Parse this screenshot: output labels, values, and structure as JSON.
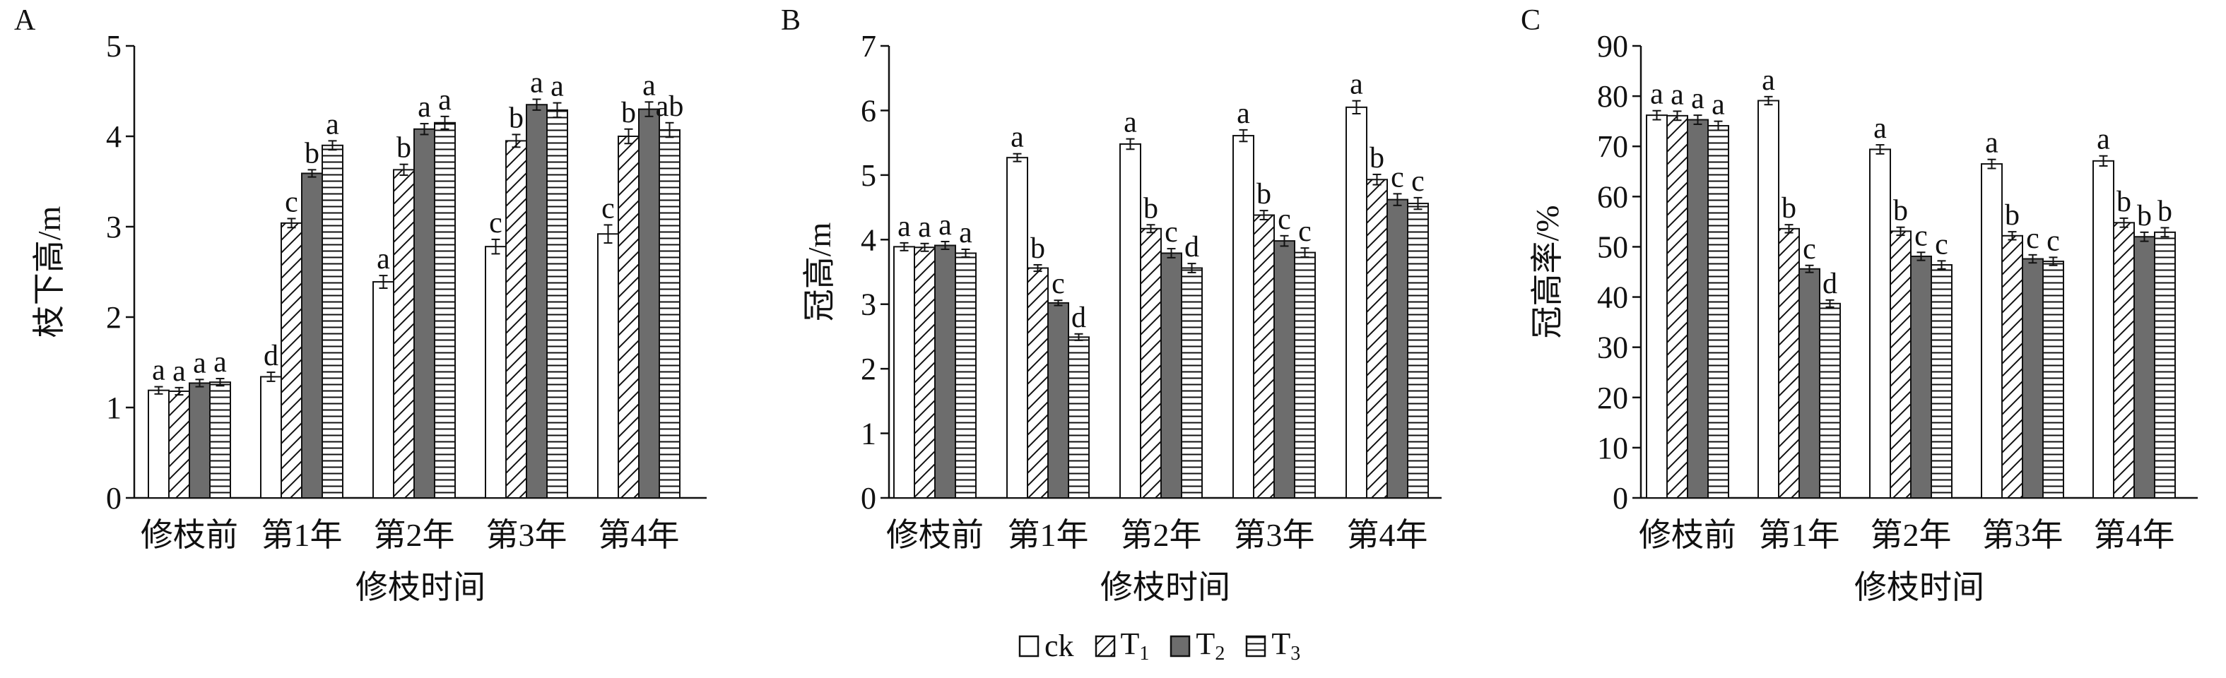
{
  "panels": [
    {
      "letter": "A",
      "unit_sym": "m"
    },
    {
      "letter": "B",
      "unit_sym": "m"
    },
    {
      "letter": "C",
      "unit_sym": "%"
    }
  ],
  "legend": [
    {
      "name": "ck",
      "sub": "",
      "pattern": "empty"
    },
    {
      "name": "T",
      "sub": "1",
      "pattern": "diag"
    },
    {
      "name": "T",
      "sub": "2",
      "pattern": "solid"
    },
    {
      "name": "T",
      "sub": "3",
      "pattern": "hlines"
    }
  ],
  "colors": {
    "axis": "#111111",
    "solid_fill": "#6d6d6d",
    "background": "#ffffff"
  },
  "chart_data": [
    {
      "type": "bar",
      "panel": "A",
      "ylabel": "枝下高/m",
      "xlabel": "修枝时间",
      "categories": [
        "修枝前",
        "第1年",
        "第2年",
        "第3年",
        "第4年"
      ],
      "ylim": [
        0,
        5
      ],
      "yticks": [
        0,
        1,
        2,
        3,
        4,
        5
      ],
      "series": [
        {
          "values": [
            1.19,
            1.34,
            2.39,
            2.78,
            2.92
          ],
          "errors": [
            0.04,
            0.05,
            0.07,
            0.08,
            0.1
          ],
          "letters": [
            "a",
            "d",
            "a",
            "c",
            "c"
          ]
        },
        {
          "values": [
            1.18,
            3.04,
            3.63,
            3.95,
            4.0
          ],
          "errors": [
            0.04,
            0.05,
            0.06,
            0.07,
            0.08
          ],
          "letters": [
            "a",
            "c",
            "b",
            "b",
            "b"
          ]
        },
        {
          "values": [
            1.27,
            3.59,
            4.08,
            4.35,
            4.3
          ],
          "errors": [
            0.04,
            0.04,
            0.06,
            0.06,
            0.08
          ],
          "letters": [
            "a",
            "b",
            "a",
            "a",
            "a"
          ]
        },
        {
          "values": [
            1.28,
            3.9,
            4.15,
            4.29,
            4.07
          ],
          "errors": [
            0.04,
            0.05,
            0.07,
            0.08,
            0.08
          ],
          "letters": [
            "a",
            "a",
            "a",
            "a",
            "ab"
          ]
        }
      ]
    },
    {
      "type": "bar",
      "panel": "B",
      "ylabel": "冠高/m",
      "xlabel": "修枝时间",
      "categories": [
        "修枝前",
        "第1年",
        "第2年",
        "第3年",
        "第4年"
      ],
      "ylim": [
        0,
        7
      ],
      "yticks": [
        0,
        1,
        2,
        3,
        4,
        5,
        6,
        7
      ],
      "series": [
        {
          "values": [
            3.89,
            5.27,
            5.48,
            5.61,
            6.05
          ],
          "errors": [
            0.06,
            0.06,
            0.08,
            0.09,
            0.1
          ],
          "letters": [
            "a",
            "a",
            "a",
            "a",
            "a"
          ]
        },
        {
          "values": [
            3.88,
            3.56,
            4.17,
            4.38,
            4.93
          ],
          "errors": [
            0.06,
            0.05,
            0.06,
            0.07,
            0.08
          ],
          "letters": [
            "a",
            "b",
            "b",
            "b",
            "b"
          ]
        },
        {
          "values": [
            3.91,
            3.02,
            3.79,
            3.98,
            4.62
          ],
          "errors": [
            0.06,
            0.04,
            0.07,
            0.08,
            0.09
          ],
          "letters": [
            "a",
            "c",
            "c",
            "c",
            "c"
          ]
        },
        {
          "values": [
            3.79,
            2.49,
            3.56,
            3.8,
            4.56
          ],
          "errors": [
            0.06,
            0.05,
            0.07,
            0.07,
            0.09
          ],
          "letters": [
            "a",
            "d",
            "d",
            "c",
            "c"
          ]
        }
      ]
    },
    {
      "type": "bar",
      "panel": "C",
      "ylabel": "冠高率/%",
      "xlabel": "修枝时间",
      "categories": [
        "修枝前",
        "第1年",
        "第2年",
        "第3年",
        "第4年"
      ],
      "ylim": [
        0,
        90
      ],
      "yticks": [
        0,
        10,
        20,
        30,
        40,
        50,
        60,
        70,
        80,
        90
      ],
      "series": [
        {
          "values": [
            76.2,
            79.1,
            69.4,
            66.5,
            67.1
          ],
          "errors": [
            0.9,
            0.8,
            0.9,
            0.9,
            1.0
          ],
          "letters": [
            "a",
            "a",
            "a",
            "a",
            "a"
          ]
        },
        {
          "values": [
            76.1,
            53.6,
            53.1,
            52.2,
            54.8
          ],
          "errors": [
            0.9,
            0.8,
            0.8,
            0.8,
            0.9
          ],
          "letters": [
            "a",
            "b",
            "b",
            "b",
            "b"
          ]
        },
        {
          "values": [
            75.3,
            45.6,
            48.1,
            47.6,
            52.0
          ],
          "errors": [
            0.9,
            0.7,
            0.8,
            0.8,
            0.9
          ],
          "letters": [
            "a",
            "c",
            "c",
            "c",
            "b"
          ]
        },
        {
          "values": [
            74.1,
            38.7,
            46.4,
            47.1,
            52.9
          ],
          "errors": [
            0.9,
            0.7,
            0.8,
            0.8,
            0.9
          ],
          "letters": [
            "a",
            "d",
            "c",
            "c",
            "b"
          ]
        }
      ]
    }
  ]
}
